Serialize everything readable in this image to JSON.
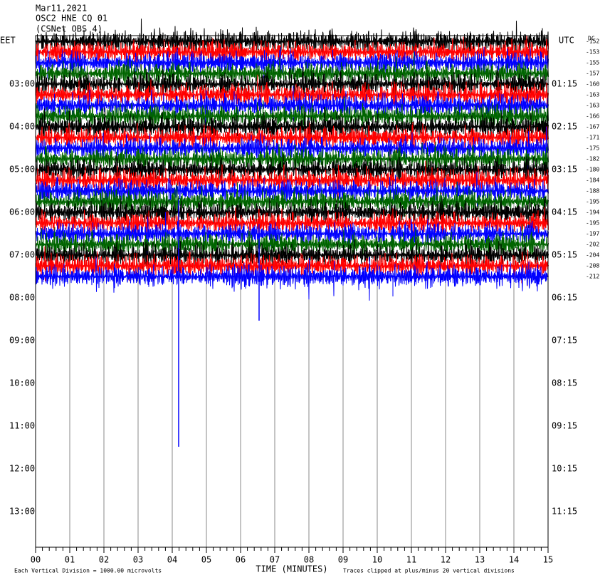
{
  "header": {
    "date": "Mar11,2021",
    "station": "OSC2 HNE CQ 01",
    "network": "(CSNet OBS 4)"
  },
  "left_axis": {
    "title": "EET",
    "labels": [
      "03:00",
      "04:00",
      "05:00",
      "06:00",
      "07:00",
      "08:00",
      "09:00",
      "10:00",
      "11:00",
      "12:00",
      "13:00"
    ]
  },
  "right_axis": {
    "title": "UTC",
    "labels": [
      "01:15",
      "02:15",
      "03:15",
      "04:15",
      "05:15",
      "06:15",
      "07:15",
      "08:15",
      "09:15",
      "10:15",
      "11:15"
    ]
  },
  "offsets": {
    "title": "DC",
    "labels": [
      "-152",
      "-153",
      "-155",
      "-157",
      "-160",
      "-163",
      "-163",
      "-166",
      "-167",
      "-171",
      "-175",
      "-182",
      "-180",
      "-184",
      "-188",
      "-195",
      "-194",
      "-195",
      "-197",
      "-202",
      "-204",
      "-208",
      "-212"
    ]
  },
  "x_axis": {
    "title": "TIME (MINUTES)",
    "labels": [
      "00",
      "01",
      "02",
      "03",
      "04",
      "05",
      "06",
      "07",
      "08",
      "09",
      "10",
      "11",
      "12",
      "13",
      "14",
      "15"
    ]
  },
  "footer": {
    "scale": "Each Vertical Division = 1000.00 microvolts",
    "clip": "Traces clipped at plus/minus 20 vertical divisions"
  }
}
